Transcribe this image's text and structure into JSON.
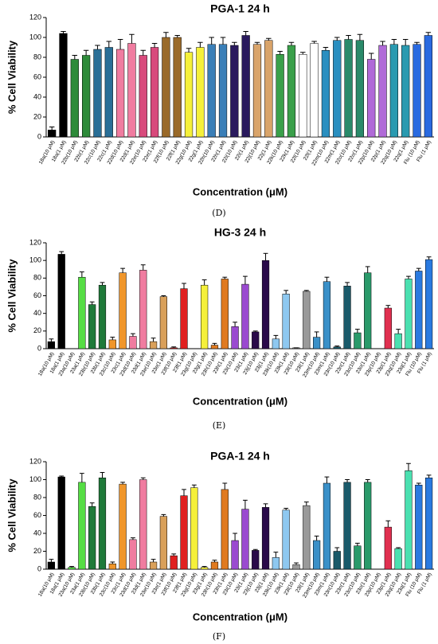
{
  "chart_data": [
    {
      "type": "bar",
      "title": "PGA-1 24 h",
      "y_label": "% Cell Viability",
      "x_label": "Concentration (μM)",
      "caption": "(D)",
      "categories": [
        "18a(10 μM)",
        "18a(1 μM)",
        "22b(10 μM)",
        "22b(1 μM)",
        "22c(10 μM)",
        "22c(1 μM)",
        "22d(10 μM)",
        "22d(1 μM)",
        "22e(10 μM)",
        "22e(1 μM)",
        "22f(10 μM)",
        "22f(1 μM)",
        "22g(10 μM)",
        "22g(1 μM)",
        "22h(10 μM)",
        "22h(1 μM)",
        "22i(10 μM)",
        "22i(1 μM)",
        "22j(10 μM)",
        "22j(1 μM)",
        "22k(10 μM)",
        "22k(1 μM)",
        "22l(10 μM)",
        "22l(1 μM)",
        "22m(10 μM)",
        "22m(1 μM)",
        "22o(10 μM)",
        "22o(1 μM)",
        "22p(10 μM)",
        "22p(1 μM)",
        "22q(10 μM)",
        "22q(1 μM)",
        "Flu (10 μM)",
        "Flu (1 μM)"
      ],
      "values": [
        7,
        104,
        78,
        82,
        88,
        90,
        88,
        94,
        82,
        90,
        100,
        100,
        85,
        90,
        93,
        93,
        92,
        102,
        93,
        97,
        83,
        92,
        83,
        94,
        87,
        97,
        98,
        97,
        78,
        92,
        93,
        92,
        93,
        102
      ],
      "errors": [
        3,
        2,
        4,
        5,
        4,
        6,
        10,
        9,
        5,
        4,
        5,
        2,
        4,
        5,
        7,
        7,
        3,
        4,
        2,
        2,
        3,
        3,
        2,
        2,
        3,
        3,
        4,
        6,
        6,
        4,
        5,
        6,
        2,
        3
      ],
      "colors": [
        "#000000",
        "#000000",
        "#2e8b3a",
        "#2e8b3a",
        "#2a6f97",
        "#2a6f97",
        "#f07ca0",
        "#f07ca0",
        "#d84a7c",
        "#d84a7c",
        "#9a6a2a",
        "#9a6a2a",
        "#f5f03a",
        "#f5f03a",
        "#3a7fb8",
        "#3a7fb8",
        "#2a1a5e",
        "#2a1a5e",
        "#d9a46a",
        "#d9a46a",
        "#3aa04a",
        "#3aa04a",
        "#ffffff",
        "#ffffff",
        "#2a8fc0",
        "#2a8fc0",
        "#2a8a6a",
        "#2a8a6a",
        "#b06ad8",
        "#b06ad8",
        "#2a9ab0",
        "#2a9ab0",
        "#2a6ae0",
        "#2a6ae0"
      ],
      "ylim": [
        0,
        120
      ],
      "yticks": [
        0,
        20,
        40,
        60,
        80,
        100,
        120
      ]
    },
    {
      "type": "bar",
      "title": "HG-3 24 h",
      "y_label": "% Cell Viability",
      "x_label": "Concentration (μM)",
      "caption": "(E)",
      "categories": [
        "18a(10 μM)",
        "18a(1 μM)",
        "23a(10 μM)",
        "23a(1 μM)",
        "23b(10 μM)",
        "23b(1 μM)",
        "23c(10 μM)",
        "23c(1 μM)",
        "23d(10 μM)",
        "23d(1 μM)",
        "23e(10 μM)",
        "23e(1 μM)",
        "23f(10 μM)",
        "23f(1 μM)",
        "23g(10 μM)",
        "23g(1 μM)",
        "23h(10 μM)",
        "23h(1 μM)",
        "23i(10 μM)",
        "23i(1 μM)",
        "23j(10 μM)",
        "23j(1 μM)",
        "23k(10 μM)",
        "23k(1 μM)",
        "23l(10 μM)",
        "23l(1 μM)",
        "23m(10 μM)",
        "23m(1 μM)",
        "23n(10 μM)",
        "23n(1 μM)",
        "23o(10 μM)",
        "23o(1 μM)",
        "23p(10 μM)",
        "23p(1 μM)",
        "23q(10 μM)",
        "23q(1 μM)",
        "Flu (10 μM)",
        "Flu (1 μM)"
      ],
      "values": [
        8,
        107,
        0,
        81,
        50,
        72,
        10,
        86,
        14,
        89,
        8,
        59,
        1,
        68,
        0,
        72,
        4,
        79,
        25,
        73,
        19,
        100,
        11,
        62,
        1,
        65,
        13,
        76,
        2,
        71,
        18,
        86,
        0,
        46,
        17,
        79,
        88,
        101
      ],
      "errors": [
        3,
        3,
        0,
        6,
        3,
        3,
        3,
        5,
        3,
        6,
        4,
        1,
        1,
        6,
        0,
        6,
        2,
        2,
        5,
        9,
        1,
        8,
        4,
        4,
        0,
        1,
        6,
        5,
        1,
        4,
        4,
        7,
        0,
        3,
        5,
        3,
        3,
        3
      ],
      "colors": [
        "#000000",
        "#000000",
        "#55dd44",
        "#55dd44",
        "#1f7a3a",
        "#1f7a3a",
        "#f0962a",
        "#f0962a",
        "#f07ca0",
        "#f07ca0",
        "#d9a05a",
        "#d9a05a",
        "#e02020",
        "#e02020",
        "#f5f03a",
        "#f5f03a",
        "#e07a20",
        "#e07a20",
        "#9a4ad0",
        "#9a4ad0",
        "#2a0a4a",
        "#2a0a4a",
        "#8ec8f0",
        "#8ec8f0",
        "#9a9a9a",
        "#9a9a9a",
        "#3a90c8",
        "#3a90c8",
        "#1a5a6a",
        "#1a5a6a",
        "#2a9a6a",
        "#2a9a6a",
        "#e03050",
        "#e03050",
        "#4ae0b0",
        "#4ae0b0",
        "#2a7ae0",
        "#2a7ae0"
      ],
      "ylim": [
        0,
        120
      ],
      "yticks": [
        0,
        20,
        40,
        60,
        80,
        100,
        120
      ]
    },
    {
      "type": "bar",
      "title": "PGA-1 24 h",
      "y_label": "% Cell Viability",
      "x_label": "Concentration (μM)",
      "caption": "(F)",
      "categories": [
        "18a(10 μM)",
        "18a(1 μM)",
        "23a(10 μM)",
        "23a(1 μM)",
        "23b(10 μM)",
        "23b(1 μM)",
        "23c(10 μM)",
        "23c(1 μM)",
        "23d(10 μM)",
        "23d(1 μM)",
        "23e(10 μM)",
        "23e(1 μM)",
        "23f(10 μM)",
        "23f(1 μM)",
        "23g(10 μM)",
        "23g(1 μM)",
        "23h(10 μM)",
        "23h(1 μM)",
        "23i(10 μM)",
        "23i(1 μM)",
        "23j(10 μM)",
        "23j(1 μM)",
        "23k(10 μM)",
        "23k(1 μM)",
        "23l(10 μM)",
        "23l(1 μM)",
        "23m(10 μM)",
        "23m(1 μM)",
        "23n(10 μM)",
        "23n(1 μM)",
        "23o(10 μM)",
        "23o(1 μM)",
        "23p(10 μM)",
        "23p(1 μM)",
        "23q(10 μM)",
        "23q(1 μM)",
        "Flu (10 μM)",
        "Flu (1 μM)"
      ],
      "values": [
        8,
        103,
        2,
        97,
        70,
        102,
        6,
        95,
        33,
        100,
        8,
        59,
        15,
        82,
        91,
        2,
        8,
        89,
        32,
        67,
        21,
        69,
        13,
        66,
        5,
        71,
        32,
        96,
        20,
        97,
        26,
        97,
        0,
        47,
        23,
        110,
        94,
        102
      ],
      "errors": [
        3,
        1,
        1,
        10,
        4,
        6,
        2,
        2,
        2,
        2,
        3,
        2,
        2,
        7,
        3,
        1,
        2,
        7,
        8,
        10,
        1,
        4,
        6,
        2,
        2,
        4,
        5,
        7,
        4,
        3,
        3,
        3,
        0,
        7,
        1,
        8,
        2,
        3
      ],
      "colors": [
        "#000000",
        "#000000",
        "#55dd44",
        "#55dd44",
        "#1f7a3a",
        "#1f7a3a",
        "#f0962a",
        "#f0962a",
        "#f07ca0",
        "#f07ca0",
        "#d9a05a",
        "#d9a05a",
        "#e02020",
        "#e02020",
        "#f5f03a",
        "#f5f03a",
        "#e07a20",
        "#e07a20",
        "#9a4ad0",
        "#9a4ad0",
        "#2a0a4a",
        "#2a0a4a",
        "#8ec8f0",
        "#8ec8f0",
        "#9a9a9a",
        "#9a9a9a",
        "#3a90c8",
        "#3a90c8",
        "#1a5a6a",
        "#1a5a6a",
        "#2a9a6a",
        "#2a9a6a",
        "#e03050",
        "#e03050",
        "#4ae0b0",
        "#4ae0b0",
        "#2a7ae0",
        "#2a7ae0"
      ],
      "ylim": [
        0,
        120
      ],
      "yticks": [
        0,
        20,
        40,
        60,
        80,
        100,
        120
      ]
    }
  ]
}
